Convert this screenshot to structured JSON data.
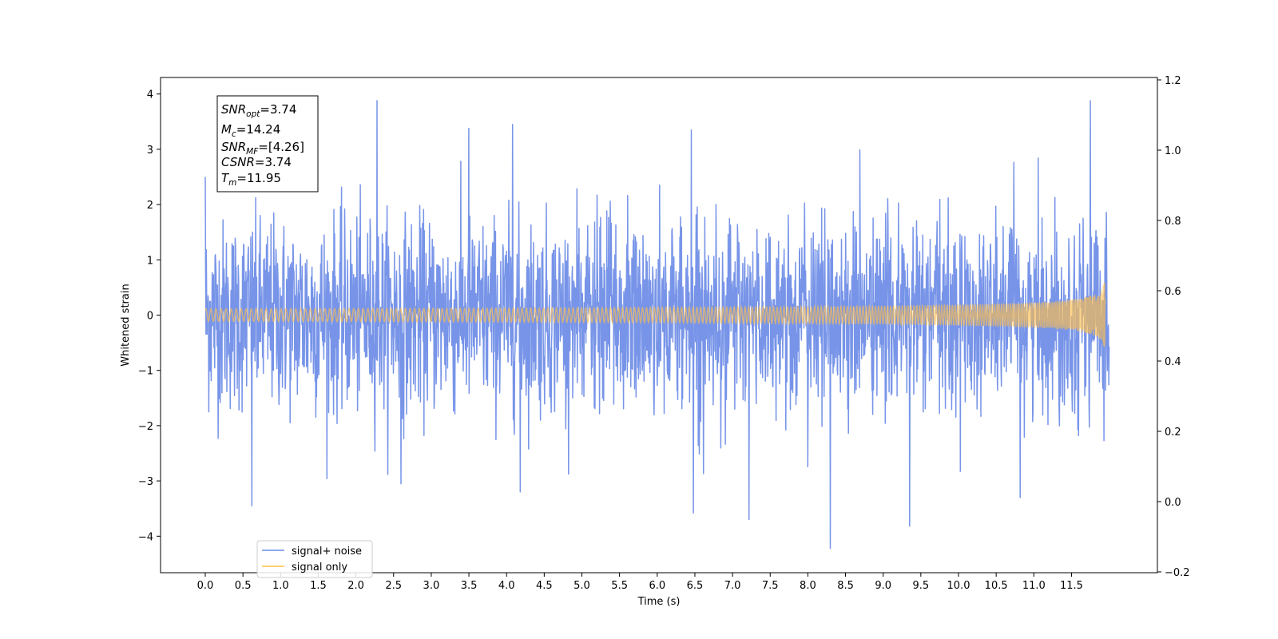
{
  "chart_data": {
    "type": "line",
    "xlabel": "Time (s)",
    "ylabel": "Whitened strain",
    "xlim": [
      -0.6,
      12.6
    ],
    "ylim": [
      -4.6,
      4.3
    ],
    "ylim_right": [
      -0.2,
      1.2
    ],
    "x_ticks": [
      "0.0",
      "0.5",
      "1.0",
      "1.5",
      "2.0",
      "2.5",
      "3.0",
      "3.5",
      "4.0",
      "4.5",
      "5.0",
      "5.5",
      "6.0",
      "6.5",
      "7.0",
      "7.5",
      "8.0",
      "8.5",
      "9.0",
      "9.5",
      "10.0",
      "10.5",
      "11.0",
      "11.5"
    ],
    "y_ticks": [
      "4",
      "3",
      "2",
      "1",
      "0",
      "−1",
      "−2",
      "−3",
      "−4"
    ],
    "y_ticks_right": [
      "1.2",
      "1.0",
      "0.8",
      "0.6",
      "0.4",
      "0.2",
      "0.0",
      "−0.2"
    ],
    "grid": false,
    "legend_position": "lower-left",
    "series": [
      {
        "name": "signal+ noise",
        "color": "#6b8be6",
        "description_x_range": [
          0.0,
          12.0
        ],
        "noise_sigma": 0.85,
        "peaks": [
          [
            0.0,
            2.5
          ],
          [
            0.62,
            -3.45
          ],
          [
            2.28,
            3.88
          ],
          [
            4.08,
            3.45
          ],
          [
            4.18,
            -3.2
          ],
          [
            6.45,
            3.35
          ],
          [
            6.48,
            -3.58
          ],
          [
            7.22,
            -3.7
          ],
          [
            8.3,
            -4.22
          ],
          [
            9.35,
            -3.82
          ],
          [
            11.75,
            3.88
          ],
          [
            2.6,
            -3.05
          ],
          [
            3.5,
            3.38
          ],
          [
            10.82,
            -3.3
          ]
        ]
      },
      {
        "name": "signal only",
        "color": "#ffbf4d",
        "description_x_range": [
          0.0,
          11.95
        ],
        "peak_amplitude": 0.68,
        "merger_time": 11.95
      }
    ],
    "annotations": {
      "snr_opt": {
        "main": "SNR",
        "sub": "opt",
        "value": "=3.74"
      },
      "mc": {
        "main": "M",
        "sub": "c",
        "value": "=14.24"
      },
      "snr_mf": {
        "main": "SNR",
        "sub": "MF",
        "value": "=[4.26]"
      },
      "csnr": {
        "main": "CSNR",
        "sub": "",
        "value": "=3.74"
      },
      "tm": {
        "main": "T",
        "sub": "m",
        "value": "=11.95"
      }
    }
  }
}
